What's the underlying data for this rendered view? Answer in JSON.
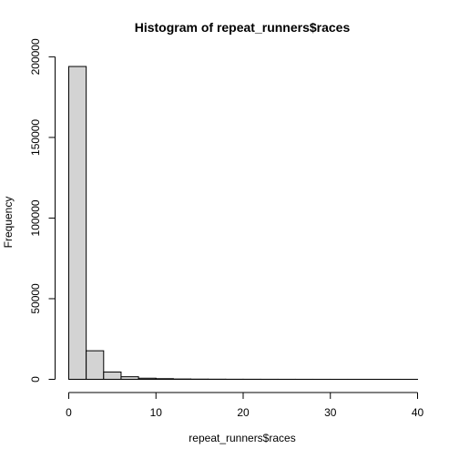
{
  "chart_data": {
    "type": "bar",
    "title": "Histogram of repeat_runners$races",
    "xlabel": "repeat_runners$races",
    "ylabel": "Frequency",
    "xlim": [
      0,
      40
    ],
    "ylim": [
      0,
      200000
    ],
    "x_ticks": [
      0,
      10,
      20,
      30,
      40
    ],
    "y_ticks": [
      0,
      50000,
      100000,
      150000,
      200000
    ],
    "x_tick_labels": [
      "0",
      "10",
      "20",
      "30",
      "40"
    ],
    "y_tick_labels": [
      "0",
      "50000",
      "100000",
      "150000",
      "200000"
    ],
    "bin_edges": [
      0,
      2,
      4,
      6,
      8,
      10,
      12,
      14,
      16,
      18,
      20,
      22,
      24,
      26,
      28,
      30,
      32,
      34,
      36,
      38,
      40
    ],
    "values": [
      194000,
      17700,
      4500,
      1600,
      700,
      400,
      200,
      120,
      80,
      50,
      40,
      30,
      20,
      15,
      10,
      8,
      6,
      5,
      4,
      3
    ],
    "bar_fill": "#d3d3d3",
    "grid": false,
    "legend": "none"
  }
}
